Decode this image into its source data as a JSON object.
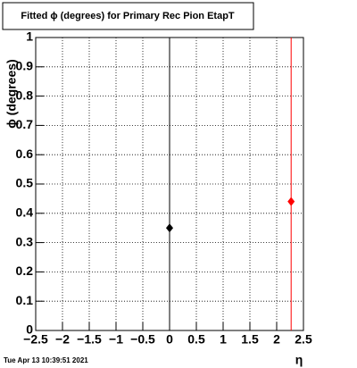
{
  "chart_data": {
    "type": "scatter",
    "title": "Fitted ϕ (degrees) for Primary Rec Pion EtapT",
    "x_label": "η",
    "y_label": "ϕ (degrees)",
    "footer": "Tue Apr 13 10:39:51 2021",
    "series": [
      {
        "color": "#000000",
        "x": [
          0
        ],
        "values": [
          0.35
        ]
      },
      {
        "color": "#ff0000",
        "x": [
          2.27
        ],
        "values": [
          0.44
        ]
      }
    ],
    "xlim": [
      -2.5,
      2.5
    ],
    "xticks": [
      {
        "value": -2.5,
        "label": "−2.5"
      },
      {
        "value": -2,
        "label": "−2"
      },
      {
        "value": -1.5,
        "label": "−1.5"
      },
      {
        "value": -1,
        "label": "−1"
      },
      {
        "value": -0.5,
        "label": "−0.5"
      },
      0,
      0.5,
      1,
      1.5,
      2,
      2.5
    ],
    "ylim": [
      0,
      1
    ],
    "yticks": [
      0,
      0.1,
      0.2,
      0.3,
      0.4,
      0.5,
      0.6,
      0.7,
      0.8,
      0.9,
      1
    ],
    "grid": true
  }
}
